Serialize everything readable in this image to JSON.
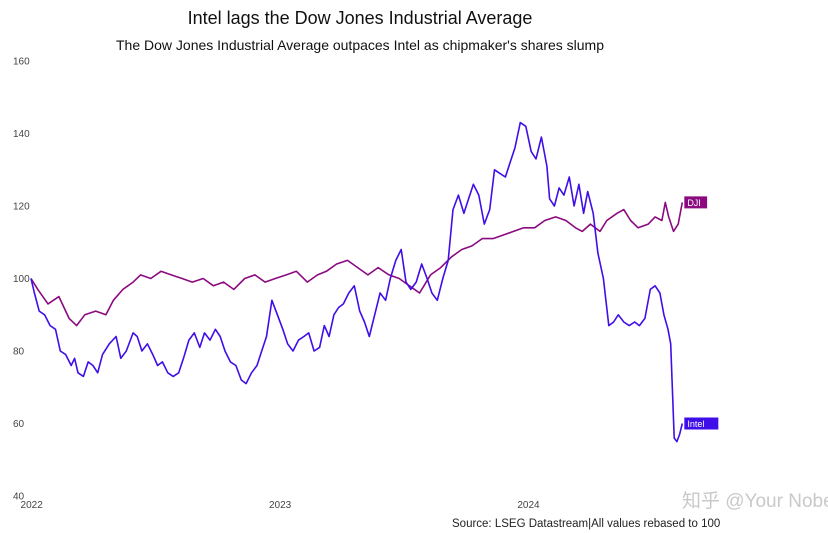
{
  "chart_data": {
    "type": "line",
    "title": "Intel lags the Dow Jones Industrial Average",
    "subtitle": "The Dow Jones Industrial Average outpaces Intel as chipmaker's shares slump",
    "source": "Source: LSEG Datastream|All values rebased to 100",
    "xlabel": "",
    "ylabel": "",
    "ylim": [
      40,
      160
    ],
    "yticks": [
      40,
      60,
      80,
      100,
      120,
      140,
      160
    ],
    "xlim": [
      "2021-12-31",
      "2024-08-15"
    ],
    "xticks": [
      {
        "date": "2022-01-01",
        "label": "2022"
      },
      {
        "date": "2023-01-01",
        "label": "2023"
      },
      {
        "date": "2024-01-01",
        "label": "2024"
      }
    ],
    "grid": false,
    "legend": "end-of-line labels",
    "series": [
      {
        "name": "DJI",
        "color": "#8b0a7f",
        "points": [
          [
            "2021-12-31",
            100
          ],
          [
            "2022-01-10",
            97
          ],
          [
            "2022-01-25",
            93
          ],
          [
            "2022-02-10",
            95
          ],
          [
            "2022-02-25",
            89
          ],
          [
            "2022-03-08",
            87
          ],
          [
            "2022-03-20",
            90
          ],
          [
            "2022-04-05",
            91
          ],
          [
            "2022-04-20",
            90
          ],
          [
            "2022-05-01",
            94
          ],
          [
            "2022-05-15",
            97
          ],
          [
            "2022-05-30",
            99
          ],
          [
            "2022-06-10",
            101
          ],
          [
            "2022-06-25",
            100
          ],
          [
            "2022-07-10",
            102
          ],
          [
            "2022-07-25",
            101
          ],
          [
            "2022-08-10",
            100
          ],
          [
            "2022-08-25",
            99
          ],
          [
            "2022-09-10",
            100
          ],
          [
            "2022-09-25",
            98
          ],
          [
            "2022-10-10",
            99
          ],
          [
            "2022-10-25",
            97
          ],
          [
            "2022-11-10",
            100
          ],
          [
            "2022-11-25",
            101
          ],
          [
            "2022-12-10",
            99
          ],
          [
            "2022-12-25",
            100
          ],
          [
            "2023-01-10",
            101
          ],
          [
            "2023-01-25",
            102
          ],
          [
            "2023-02-10",
            99
          ],
          [
            "2023-02-25",
            101
          ],
          [
            "2023-03-10",
            102
          ],
          [
            "2023-03-25",
            104
          ],
          [
            "2023-04-10",
            105
          ],
          [
            "2023-04-25",
            103
          ],
          [
            "2023-05-10",
            101
          ],
          [
            "2023-05-25",
            103
          ],
          [
            "2023-06-10",
            101
          ],
          [
            "2023-06-25",
            100
          ],
          [
            "2023-07-10",
            98
          ],
          [
            "2023-07-25",
            96
          ],
          [
            "2023-08-10",
            101
          ],
          [
            "2023-08-25",
            103
          ],
          [
            "2023-09-10",
            106
          ],
          [
            "2023-09-25",
            108
          ],
          [
            "2023-10-10",
            109
          ],
          [
            "2023-10-25",
            111
          ],
          [
            "2023-11-10",
            111
          ],
          [
            "2023-11-25",
            112
          ],
          [
            "2023-12-10",
            113
          ],
          [
            "2023-12-25",
            114
          ],
          [
            "2024-01-10",
            114
          ],
          [
            "2024-01-25",
            116
          ],
          [
            "2024-02-10",
            117
          ],
          [
            "2024-02-25",
            116
          ],
          [
            "2024-03-10",
            114
          ],
          [
            "2024-03-20",
            113
          ],
          [
            "2024-04-01",
            115
          ],
          [
            "2024-04-15",
            113
          ],
          [
            "2024-04-25",
            116
          ],
          [
            "2024-05-10",
            118
          ],
          [
            "2024-05-20",
            119
          ],
          [
            "2024-05-30",
            116
          ],
          [
            "2024-06-10",
            114
          ],
          [
            "2024-06-25",
            115
          ],
          [
            "2024-07-05",
            117
          ],
          [
            "2024-07-15",
            116
          ],
          [
            "2024-07-20",
            121
          ],
          [
            "2024-07-25",
            117
          ],
          [
            "2024-08-01",
            113
          ],
          [
            "2024-08-08",
            115
          ],
          [
            "2024-08-14",
            121
          ]
        ]
      },
      {
        "name": "Intel",
        "color": "#3f0ee8",
        "points": [
          [
            "2021-12-31",
            100
          ],
          [
            "2022-01-05",
            96
          ],
          [
            "2022-01-12",
            91
          ],
          [
            "2022-01-20",
            90
          ],
          [
            "2022-01-28",
            87
          ],
          [
            "2022-02-05",
            86
          ],
          [
            "2022-02-12",
            80
          ],
          [
            "2022-02-20",
            79
          ],
          [
            "2022-02-28",
            76
          ],
          [
            "2022-03-05",
            78
          ],
          [
            "2022-03-10",
            74
          ],
          [
            "2022-03-18",
            73
          ],
          [
            "2022-03-25",
            77
          ],
          [
            "2022-04-01",
            76
          ],
          [
            "2022-04-08",
            74
          ],
          [
            "2022-04-15",
            79
          ],
          [
            "2022-04-25",
            82
          ],
          [
            "2022-05-05",
            84
          ],
          [
            "2022-05-12",
            78
          ],
          [
            "2022-05-20",
            80
          ],
          [
            "2022-05-30",
            85
          ],
          [
            "2022-06-05",
            84
          ],
          [
            "2022-06-12",
            80
          ],
          [
            "2022-06-20",
            82
          ],
          [
            "2022-06-28",
            79
          ],
          [
            "2022-07-05",
            76
          ],
          [
            "2022-07-12",
            77
          ],
          [
            "2022-07-20",
            74
          ],
          [
            "2022-07-28",
            73
          ],
          [
            "2022-08-05",
            74
          ],
          [
            "2022-08-12",
            78
          ],
          [
            "2022-08-20",
            83
          ],
          [
            "2022-08-28",
            85
          ],
          [
            "2022-09-05",
            81
          ],
          [
            "2022-09-12",
            85
          ],
          [
            "2022-09-20",
            83
          ],
          [
            "2022-09-28",
            86
          ],
          [
            "2022-10-05",
            84
          ],
          [
            "2022-10-12",
            80
          ],
          [
            "2022-10-20",
            77
          ],
          [
            "2022-10-28",
            76
          ],
          [
            "2022-11-05",
            72
          ],
          [
            "2022-11-12",
            71
          ],
          [
            "2022-11-20",
            74
          ],
          [
            "2022-11-28",
            76
          ],
          [
            "2022-12-05",
            80
          ],
          [
            "2022-12-12",
            84
          ],
          [
            "2022-12-20",
            94
          ],
          [
            "2022-12-28",
            90
          ],
          [
            "2023-01-05",
            86
          ],
          [
            "2023-01-12",
            82
          ],
          [
            "2023-01-20",
            80
          ],
          [
            "2023-01-28",
            83
          ],
          [
            "2023-02-05",
            84
          ],
          [
            "2023-02-12",
            85
          ],
          [
            "2023-02-20",
            80
          ],
          [
            "2023-02-28",
            81
          ],
          [
            "2023-03-07",
            87
          ],
          [
            "2023-03-14",
            84
          ],
          [
            "2023-03-21",
            90
          ],
          [
            "2023-03-28",
            92
          ],
          [
            "2023-04-04",
            93
          ],
          [
            "2023-04-12",
            96
          ],
          [
            "2023-04-20",
            98
          ],
          [
            "2023-04-28",
            91
          ],
          [
            "2023-05-05",
            88
          ],
          [
            "2023-05-12",
            84
          ],
          [
            "2023-05-20",
            90
          ],
          [
            "2023-05-28",
            96
          ],
          [
            "2023-06-05",
            94
          ],
          [
            "2023-06-12",
            100
          ],
          [
            "2023-06-20",
            105
          ],
          [
            "2023-06-28",
            108
          ],
          [
            "2023-07-05",
            99
          ],
          [
            "2023-07-12",
            97
          ],
          [
            "2023-07-20",
            99
          ],
          [
            "2023-07-28",
            104
          ],
          [
            "2023-08-05",
            100
          ],
          [
            "2023-08-12",
            96
          ],
          [
            "2023-08-20",
            94
          ],
          [
            "2023-08-28",
            100
          ],
          [
            "2023-09-05",
            105
          ],
          [
            "2023-09-12",
            119
          ],
          [
            "2023-09-20",
            123
          ],
          [
            "2023-09-28",
            118
          ],
          [
            "2023-10-05",
            122
          ],
          [
            "2023-10-12",
            126
          ],
          [
            "2023-10-20",
            123
          ],
          [
            "2023-10-28",
            115
          ],
          [
            "2023-11-05",
            119
          ],
          [
            "2023-11-12",
            130
          ],
          [
            "2023-11-20",
            129
          ],
          [
            "2023-11-28",
            128
          ],
          [
            "2023-12-05",
            132
          ],
          [
            "2023-12-12",
            136
          ],
          [
            "2023-12-20",
            143
          ],
          [
            "2023-12-28",
            142
          ],
          [
            "2024-01-05",
            135
          ],
          [
            "2024-01-12",
            133
          ],
          [
            "2024-01-20",
            139
          ],
          [
            "2024-01-28",
            131
          ],
          [
            "2024-02-01",
            122
          ],
          [
            "2024-02-08",
            120
          ],
          [
            "2024-02-15",
            125
          ],
          [
            "2024-02-22",
            123
          ],
          [
            "2024-03-01",
            128
          ],
          [
            "2024-03-08",
            120
          ],
          [
            "2024-03-15",
            126
          ],
          [
            "2024-03-22",
            118
          ],
          [
            "2024-03-28",
            124
          ],
          [
            "2024-04-05",
            118
          ],
          [
            "2024-04-12",
            107
          ],
          [
            "2024-04-20",
            100
          ],
          [
            "2024-04-28",
            87
          ],
          [
            "2024-05-05",
            88
          ],
          [
            "2024-05-12",
            90
          ],
          [
            "2024-05-20",
            88
          ],
          [
            "2024-05-28",
            87
          ],
          [
            "2024-06-05",
            88
          ],
          [
            "2024-06-12",
            87
          ],
          [
            "2024-06-20",
            89
          ],
          [
            "2024-06-28",
            97
          ],
          [
            "2024-07-05",
            98
          ],
          [
            "2024-07-12",
            96
          ],
          [
            "2024-07-18",
            90
          ],
          [
            "2024-07-24",
            86
          ],
          [
            "2024-07-28",
            82
          ],
          [
            "2024-08-02",
            56
          ],
          [
            "2024-08-06",
            55
          ],
          [
            "2024-08-10",
            57
          ],
          [
            "2024-08-14",
            60
          ]
        ]
      }
    ]
  },
  "watermark": "知乎 @Your Nobel"
}
